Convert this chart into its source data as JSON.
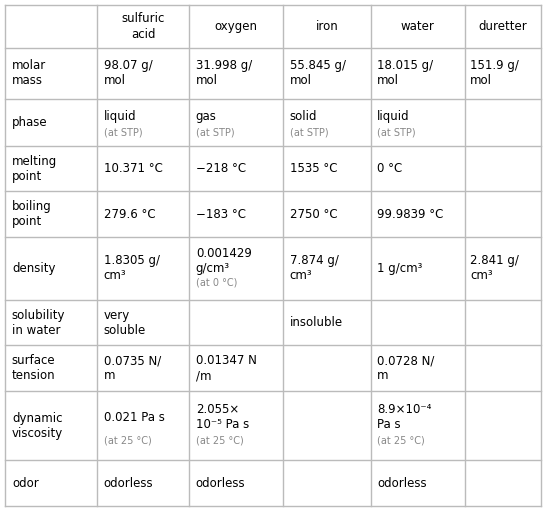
{
  "col_headers": [
    "sulfuric\nacid",
    "oxygen",
    "iron",
    "water",
    "duretter"
  ],
  "row_labels": [
    "molar\nmass",
    "phase",
    "melting\npoint",
    "boiling\npoint",
    "density",
    "solubility\nin water",
    "surface\ntension",
    "dynamic\nviscosity",
    "odor"
  ],
  "cells": [
    [
      "98.07 g/\nmol",
      "31.998 g/\nmol",
      "55.845 g/\nmol",
      "18.015 g/\nmol",
      "151.9 g/\nmol"
    ],
    [
      "liquid\n(at STP)",
      "gas\n(at STP)",
      "solid\n(at STP)",
      "liquid\n(at STP)",
      ""
    ],
    [
      "10.371 °C",
      "−218 °C",
      "1535 °C",
      "0 °C",
      ""
    ],
    [
      "279.6 °C",
      "−183 °C",
      "2750 °C",
      "99.9839 °C",
      ""
    ],
    [
      "1.8305 g/\ncm³",
      "0.001429\ng/cm³\n(at 0 °C)",
      "7.874 g/\ncm³",
      "1 g/cm³",
      "2.841 g/\ncm³"
    ],
    [
      "very\nsoluble",
      "",
      "insoluble",
      "",
      ""
    ],
    [
      "0.0735 N/\nm",
      "0.01347 N\n/m",
      "",
      "0.0728 N/\nm",
      ""
    ],
    [
      "0.021 Pa s\n(at 25 °C)",
      "2.055×\n10⁻⁵ Pa s\n(at 25 °C)",
      "",
      "8.9×10⁻⁴\nPa s\n(at 25 °C)",
      ""
    ],
    [
      "odorless",
      "odorless",
      "",
      "odorless",
      ""
    ]
  ],
  "bg_color": "#ffffff",
  "line_color": "#bbbbbb",
  "text_color": "#000000",
  "sub_text_color": "#888888",
  "header_fontsize": 8.5,
  "cell_fontsize": 8.5,
  "sub_fontsize": 7.0,
  "figsize": [
    5.46,
    5.11
  ],
  "dpi": 100
}
